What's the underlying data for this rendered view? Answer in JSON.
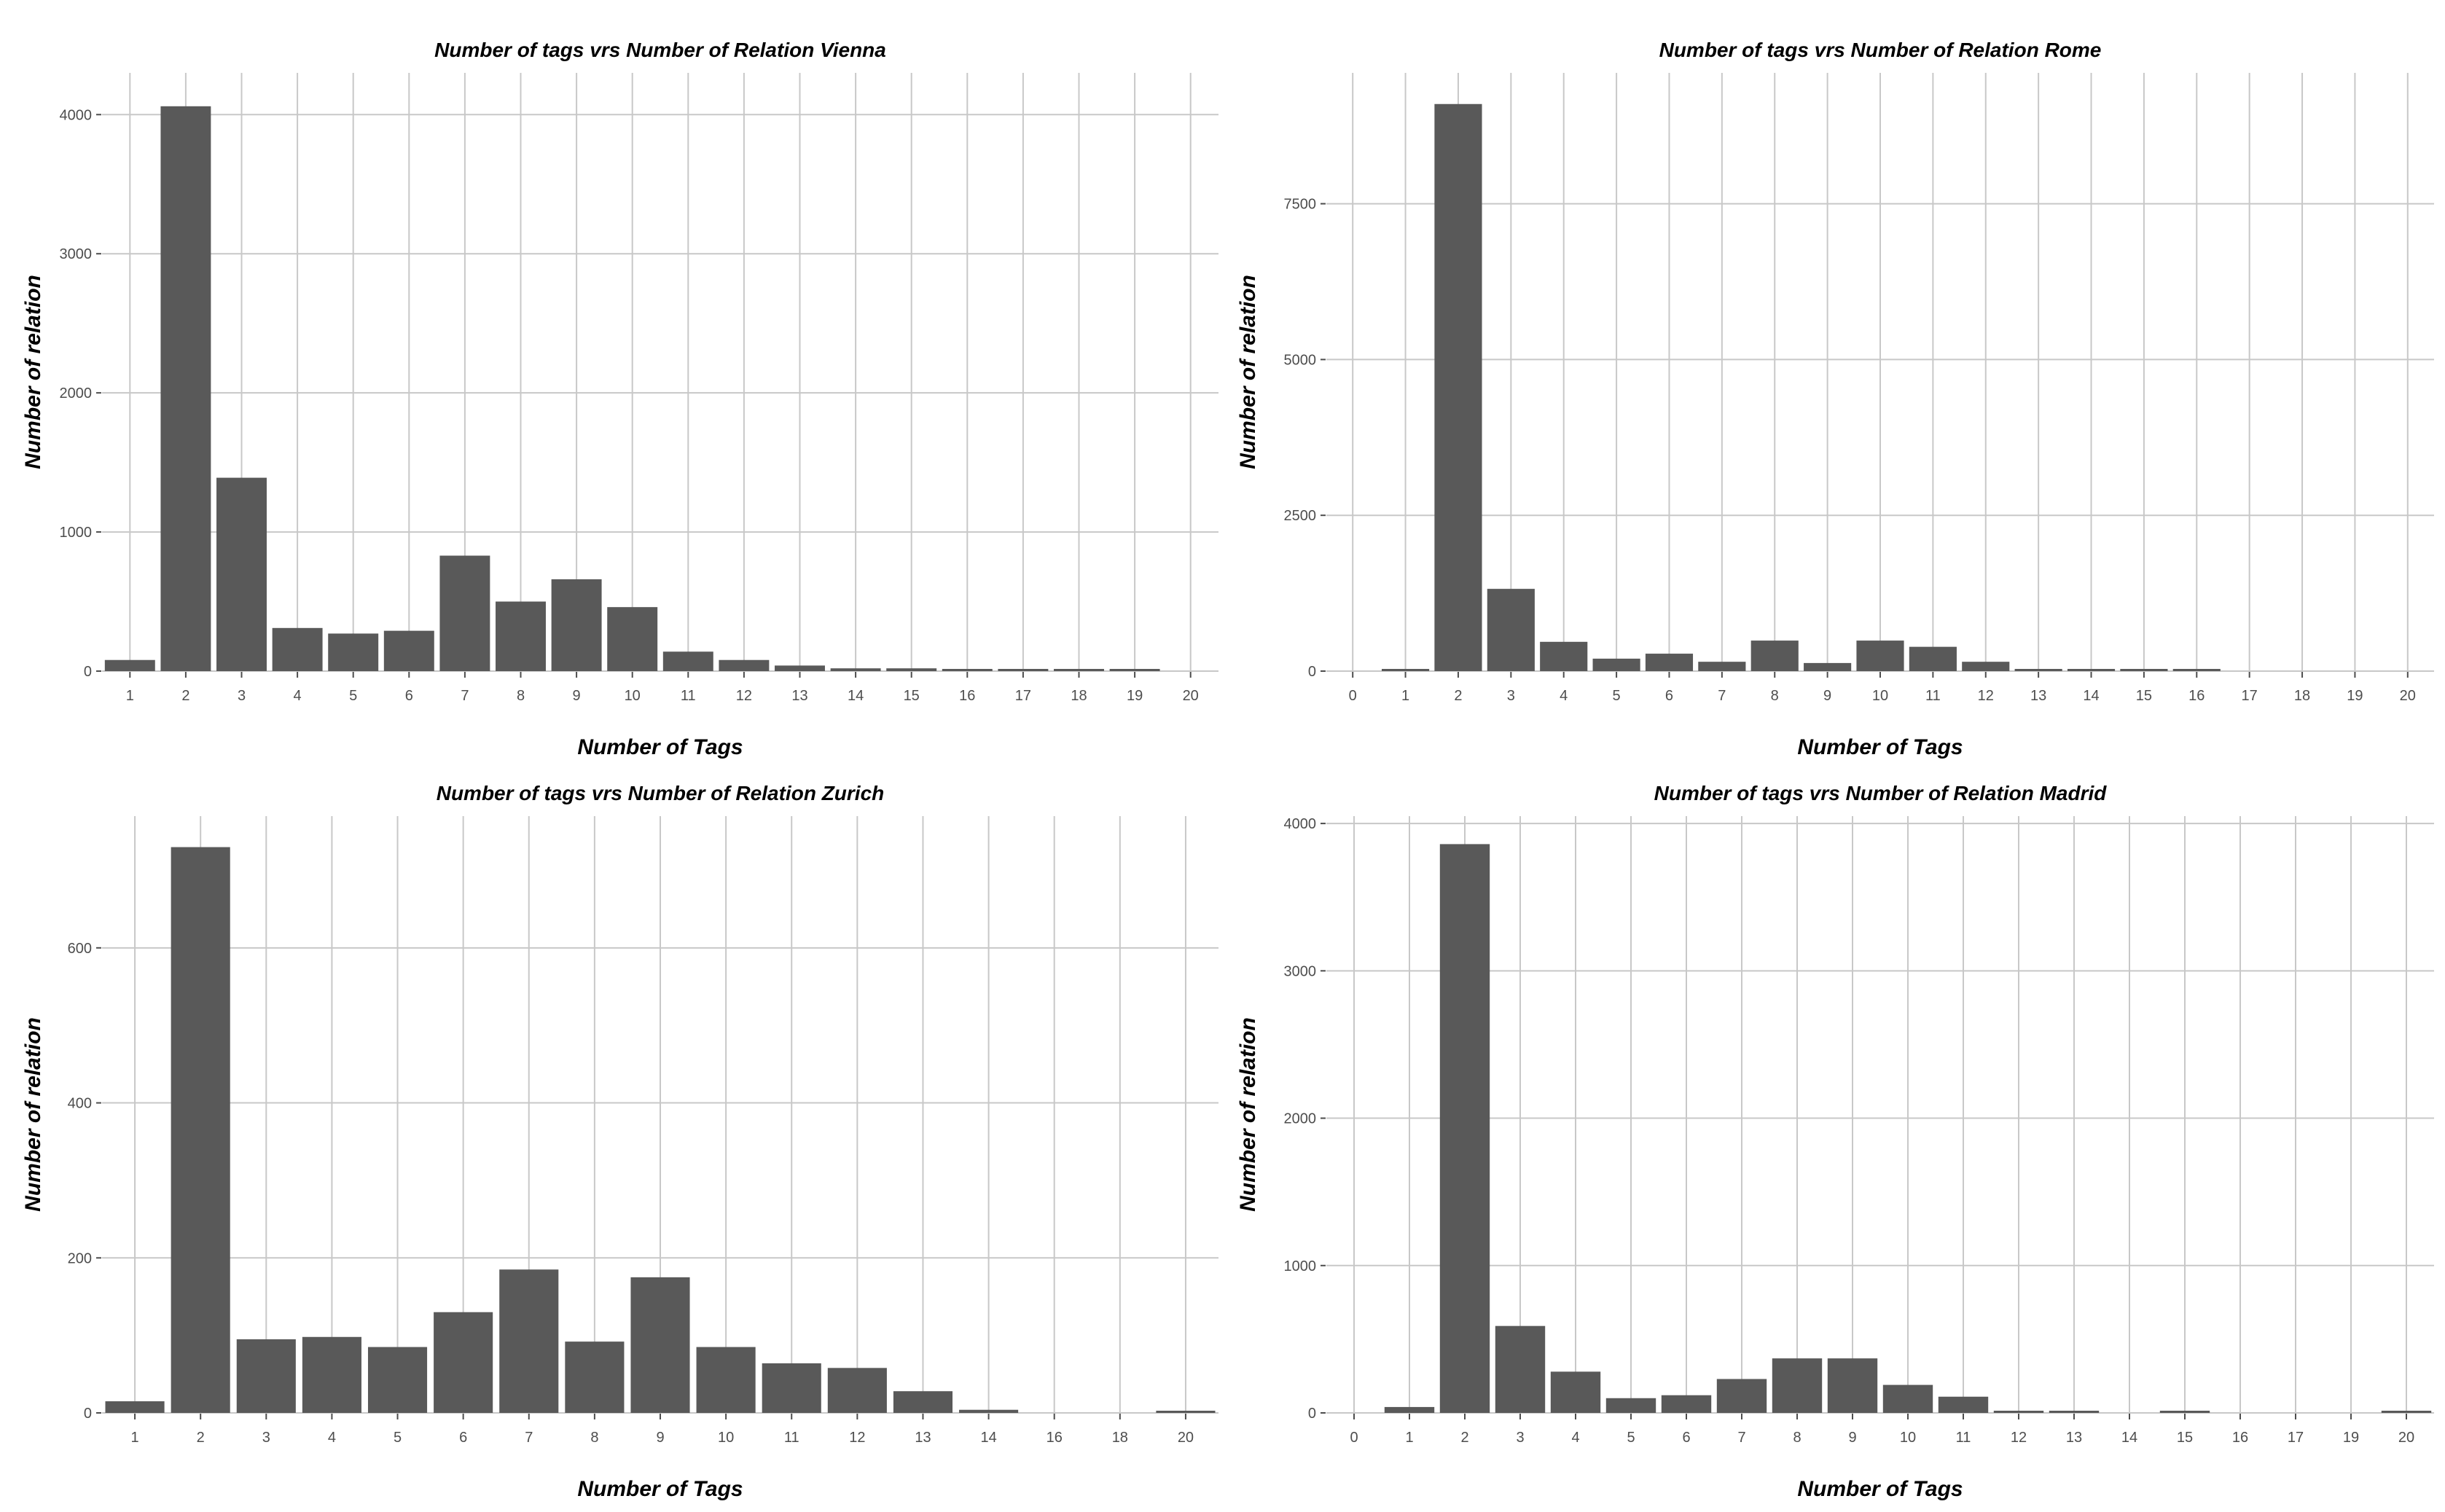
{
  "chart_data": [
    {
      "type": "bar",
      "title": "Number of tags vrs Number of Relation Vienna",
      "xlabel": "Number of Tags",
      "ylabel": "Number of relation",
      "categories": [
        "1",
        "2",
        "3",
        "4",
        "5",
        "6",
        "7",
        "8",
        "9",
        "10",
        "11",
        "12",
        "13",
        "14",
        "15",
        "16",
        "17",
        "18",
        "19",
        "20"
      ],
      "values": [
        80,
        4060,
        1390,
        310,
        270,
        290,
        830,
        500,
        660,
        460,
        140,
        80,
        40,
        20,
        20,
        15,
        10,
        8,
        5,
        0
      ],
      "yticks": [
        0,
        1000,
        2000,
        3000,
        4000
      ],
      "ylim": [
        0,
        4300
      ],
      "grid": true,
      "legend": "none"
    },
    {
      "type": "bar",
      "title": "Number of tags vrs Number of Relation Rome",
      "xlabel": "Number of Tags",
      "ylabel": "Number of relation",
      "categories": [
        "0",
        "1",
        "2",
        "3",
        "4",
        "5",
        "6",
        "7",
        "8",
        "9",
        "10",
        "11",
        "12",
        "13",
        "14",
        "15",
        "16",
        "17",
        "18",
        "19",
        "20"
      ],
      "values": [
        0,
        20,
        9100,
        1320,
        470,
        200,
        280,
        150,
        490,
        130,
        490,
        390,
        150,
        20,
        15,
        15,
        15,
        0,
        0,
        0,
        0
      ],
      "yticks": [
        0,
        2500,
        5000,
        7500
      ],
      "ylim": [
        0,
        9600
      ],
      "grid": true,
      "legend": "none"
    },
    {
      "type": "bar",
      "title": "Number of tags vrs Number of Relation Zurich",
      "xlabel": "Number of Tags",
      "ylabel": "Number of relation",
      "categories": [
        "1",
        "2",
        "3",
        "4",
        "5",
        "6",
        "7",
        "8",
        "9",
        "10",
        "11",
        "12",
        "13",
        "14",
        "16",
        "18",
        "20"
      ],
      "values": [
        15,
        730,
        95,
        98,
        85,
        130,
        185,
        92,
        175,
        85,
        64,
        58,
        28,
        4,
        0,
        0,
        2
      ],
      "yticks": [
        0,
        200,
        400,
        600
      ],
      "ylim": [
        0,
        770
      ],
      "grid": true,
      "legend": "none"
    },
    {
      "type": "bar",
      "title": "Number of tags vrs Number of Relation Madrid",
      "xlabel": "Number of Tags",
      "ylabel": "Number of relation",
      "categories": [
        "0",
        "1",
        "2",
        "3",
        "4",
        "5",
        "6",
        "7",
        "8",
        "9",
        "10",
        "11",
        "12",
        "13",
        "14",
        "15",
        "16",
        "17",
        "19",
        "20"
      ],
      "values": [
        0,
        40,
        3860,
        590,
        280,
        100,
        120,
        230,
        370,
        370,
        190,
        110,
        10,
        8,
        0,
        10,
        0,
        0,
        0,
        10
      ],
      "yticks": [
        0,
        1000,
        2000,
        3000,
        4000
      ],
      "ylim": [
        0,
        4050
      ],
      "grid": true,
      "legend": "none"
    }
  ]
}
